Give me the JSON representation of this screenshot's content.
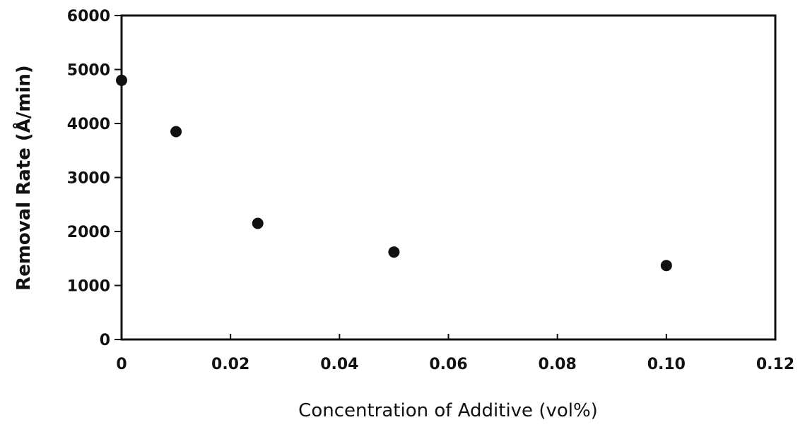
{
  "chart_data": {
    "type": "scatter",
    "title": "",
    "xlabel": "Concentration of Additive (vol%)",
    "ylabel": "Removal Rate (Å/min)",
    "xlim": [
      0,
      0.12
    ],
    "ylim": [
      0,
      6000
    ],
    "x_ticks": [
      0,
      0.02,
      0.04,
      0.06,
      0.08,
      0.1,
      0.12
    ],
    "x_tick_labels": [
      "0",
      "0.02",
      "0.04",
      "0.06",
      "0.08",
      "0.10",
      "0.12"
    ],
    "y_ticks": [
      0,
      1000,
      2000,
      3000,
      4000,
      5000,
      6000
    ],
    "y_tick_labels": [
      "0",
      "1000",
      "2000",
      "3000",
      "4000",
      "5000",
      "6000"
    ],
    "grid": false,
    "legend": "none",
    "marker_color": "#111111",
    "series": [
      {
        "x": [
          0,
          0.01,
          0.025,
          0.05,
          0.1
        ],
        "y": [
          4800,
          3850,
          2150,
          1620,
          1370
        ]
      }
    ]
  }
}
